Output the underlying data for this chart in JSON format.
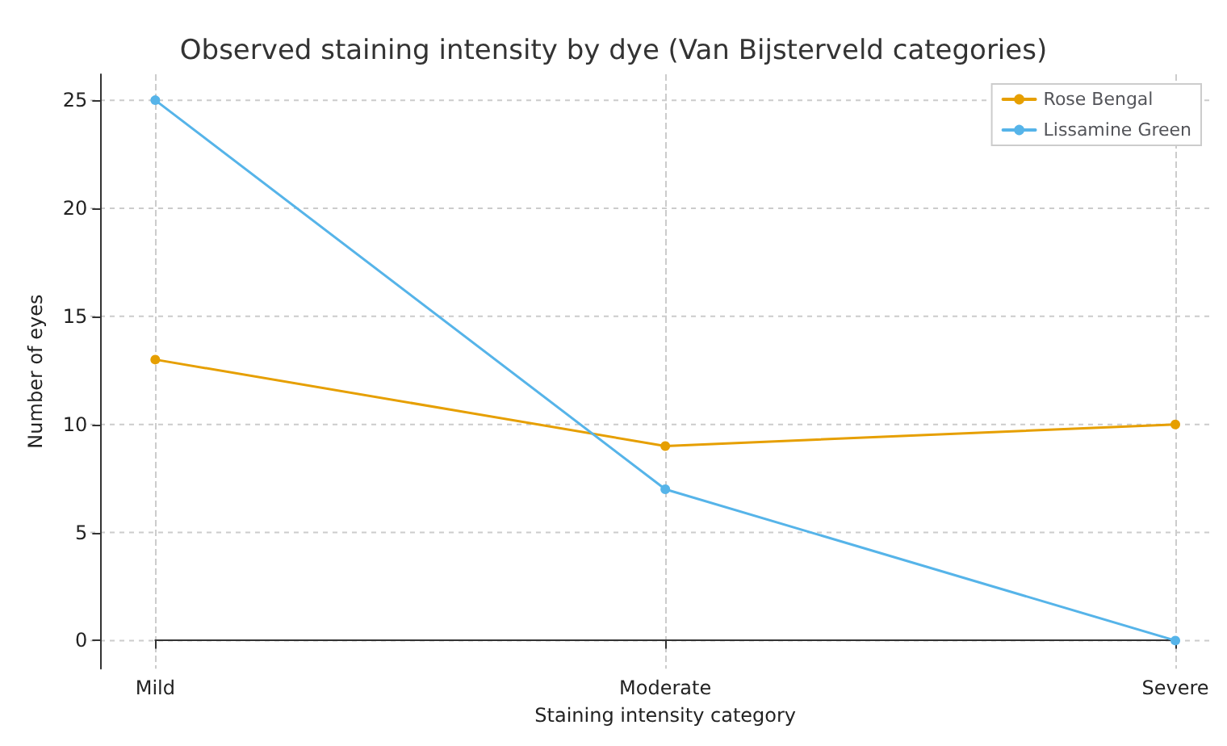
{
  "chart_data": {
    "type": "line",
    "title": "Observed staining intensity by dye (Van Bijsterveld categories)",
    "xlabel": "Staining intensity category",
    "ylabel": "Number of eyes",
    "categories": [
      "Mild",
      "Moderate",
      "Severe"
    ],
    "series": [
      {
        "name": "Rose Bengal",
        "color": "#e69f00",
        "values": [
          13,
          9,
          10
        ]
      },
      {
        "name": "Lissamine Green",
        "color": "#56b4e9",
        "values": [
          25,
          7,
          0
        ]
      }
    ],
    "ylim": [
      -1.3,
      26.2
    ],
    "yticks": [
      0,
      5,
      10,
      15,
      20,
      25
    ],
    "grid": true,
    "legend": "top right",
    "marker": "circle",
    "line_style": "solid"
  }
}
